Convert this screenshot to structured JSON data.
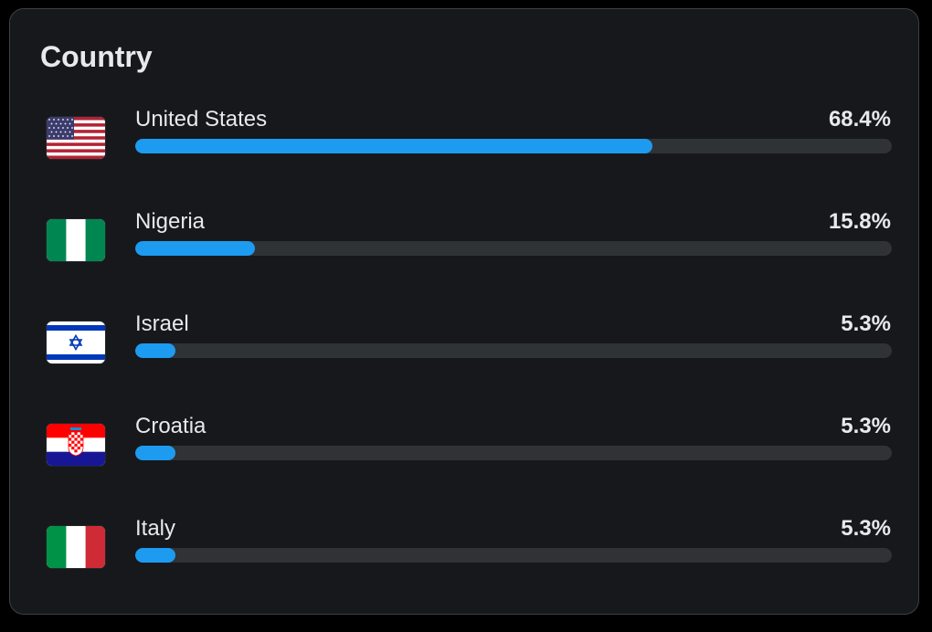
{
  "card": {
    "title": "Country"
  },
  "colors": {
    "accent": "#1d9bf0",
    "track": "#2f3336",
    "text": "#e7e9ea",
    "card_bg": "#16181c"
  },
  "countries": [
    {
      "name": "United States",
      "percent_label": "68.4%",
      "percent": 68.4,
      "flag": "us-flag-icon"
    },
    {
      "name": "Nigeria",
      "percent_label": "15.8%",
      "percent": 15.8,
      "flag": "nigeria-flag-icon"
    },
    {
      "name": "Israel",
      "percent_label": "5.3%",
      "percent": 5.3,
      "flag": "israel-flag-icon"
    },
    {
      "name": "Croatia",
      "percent_label": "5.3%",
      "percent": 5.3,
      "flag": "croatia-flag-icon"
    },
    {
      "name": "Italy",
      "percent_label": "5.3%",
      "percent": 5.3,
      "flag": "italy-flag-icon"
    }
  ]
}
